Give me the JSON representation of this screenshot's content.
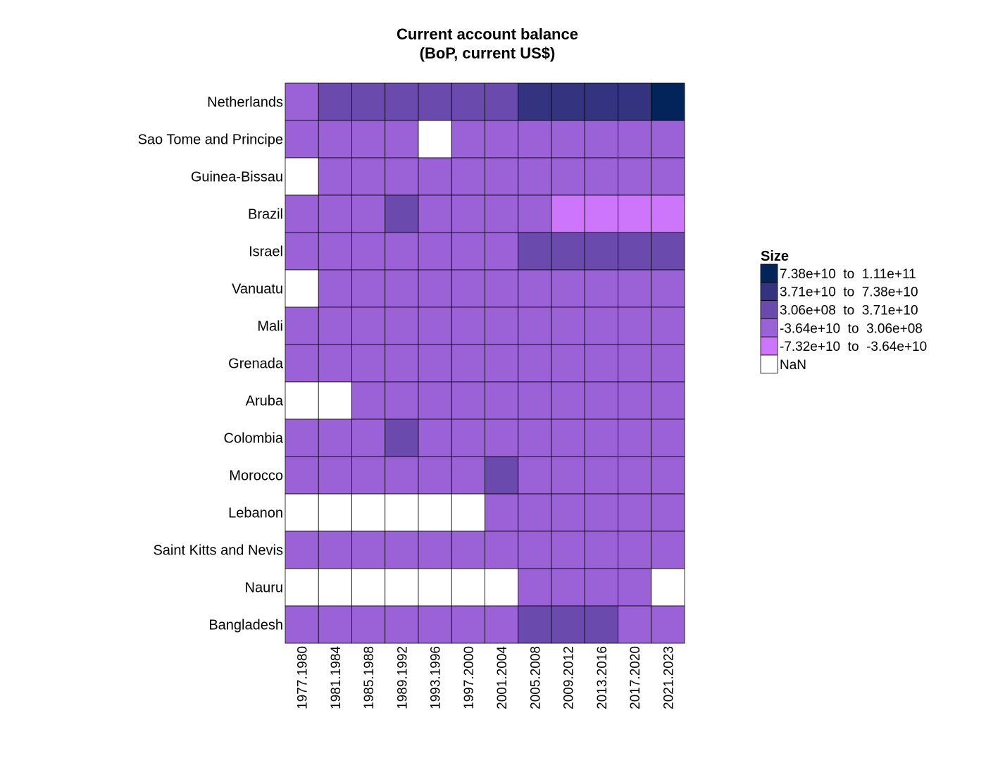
{
  "chart_data": {
    "type": "heatmap",
    "title": [
      "Current account balance",
      "(BoP, current US$)"
    ],
    "columns": [
      "1977.1980",
      "1981.1984",
      "1985.1988",
      "1989.1992",
      "1993.1996",
      "1997.2000",
      "2001.2004",
      "2005.2008",
      "2009.2012",
      "2013.2016",
      "2017.2020",
      "2021.2023"
    ],
    "rows": [
      "Netherlands",
      "Sao Tome and Principe",
      "Guinea-Bissau",
      "Brazil",
      "Israel",
      "Vanuatu",
      "Mali",
      "Grenada",
      "Aruba",
      "Colombia",
      "Morocco",
      "Lebanon",
      "Saint Kitts and Nevis",
      "Nauru",
      "Bangladesh"
    ],
    "legend": {
      "title": "Size",
      "position": "right",
      "bins": [
        {
          "label": "7.38e+10  to  1.11e+11",
          "color": "#03245a"
        },
        {
          "label": "3.71e+10  to  7.38e+10",
          "color": "#333380"
        },
        {
          "label": "3.06e+08  to  3.71e+10",
          "color": "#6a4bad"
        },
        {
          "label": "-3.64e+10  to  3.06e+08",
          "color": "#9b62d7"
        },
        {
          "label": "-7.32e+10  to  -3.64e+10",
          "color": "#cd76fb"
        },
        {
          "label": "NaN",
          "color": "#ffffff"
        }
      ]
    },
    "bin_index_values": [
      [
        3,
        2,
        2,
        2,
        2,
        2,
        2,
        1,
        1,
        1,
        1,
        0
      ],
      [
        3,
        3,
        3,
        3,
        5,
        3,
        3,
        3,
        3,
        3,
        3,
        3
      ],
      [
        5,
        3,
        3,
        3,
        3,
        3,
        3,
        3,
        3,
        3,
        3,
        3
      ],
      [
        3,
        3,
        3,
        2,
        3,
        3,
        3,
        3,
        4,
        4,
        4,
        4
      ],
      [
        3,
        3,
        3,
        3,
        3,
        3,
        3,
        2,
        2,
        2,
        2,
        2
      ],
      [
        5,
        3,
        3,
        3,
        3,
        3,
        3,
        3,
        3,
        3,
        3,
        3
      ],
      [
        3,
        3,
        3,
        3,
        3,
        3,
        3,
        3,
        3,
        3,
        3,
        3
      ],
      [
        3,
        3,
        3,
        3,
        3,
        3,
        3,
        3,
        3,
        3,
        3,
        3
      ],
      [
        5,
        5,
        3,
        3,
        3,
        3,
        3,
        3,
        3,
        3,
        3,
        3
      ],
      [
        3,
        3,
        3,
        2,
        3,
        3,
        3,
        3,
        3,
        3,
        3,
        3
      ],
      [
        3,
        3,
        3,
        3,
        3,
        3,
        2,
        3,
        3,
        3,
        3,
        3
      ],
      [
        5,
        5,
        5,
        5,
        5,
        5,
        3,
        3,
        3,
        3,
        3,
        3
      ],
      [
        3,
        3,
        3,
        3,
        3,
        3,
        3,
        3,
        3,
        3,
        3,
        3
      ],
      [
        5,
        5,
        5,
        5,
        5,
        5,
        5,
        3,
        3,
        3,
        3,
        5
      ],
      [
        3,
        3,
        3,
        3,
        3,
        3,
        3,
        2,
        2,
        2,
        3,
        3
      ]
    ],
    "grid": true
  }
}
